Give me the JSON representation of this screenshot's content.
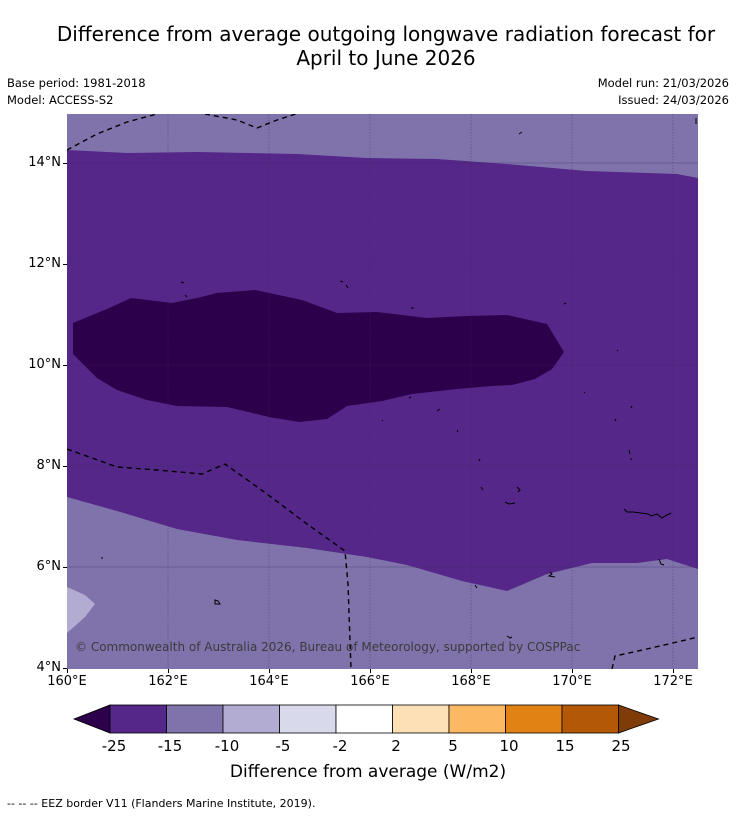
{
  "title": {
    "line1": "Difference from average outgoing longwave radiation forecast for",
    "line2": "April to June 2026"
  },
  "meta": {
    "base_period": "Base period: 1981-2018",
    "model": "Model: ACCESS-S2",
    "model_run": "Model run: 21/03/2026",
    "issued": "Issued: 24/03/2026"
  },
  "map": {
    "copyright": "© Commonwealth of Australia 2026, Bureau of Meteorology, supported by COSPPac",
    "lat_labels": [
      "14°N",
      "12°N",
      "10°N",
      "8°N",
      "6°N",
      "4°N"
    ],
    "lon_labels": [
      "160°E",
      "162°E",
      "164°E",
      "166°E",
      "168°E",
      "170°E",
      "172°E"
    ],
    "lat_range": [
      4,
      15
    ],
    "lon_range": [
      160,
      172.5
    ]
  },
  "colorbar": {
    "labels": [
      "-25",
      "-15",
      "-10",
      "-5",
      "-2",
      "2",
      "5",
      "10",
      "15",
      "25"
    ],
    "colors": [
      "#2d004b",
      "#542788",
      "#8073ac",
      "#b2abd2",
      "#d8daeb",
      "#ffffff",
      "#fee0b6",
      "#fdb863",
      "#e08214",
      "#b35806",
      "#7f3b08"
    ],
    "title": "Difference from average (W/m2)"
  },
  "legend": {
    "eez": "--  --  -- EEZ border V11 (Flanders Marine Institute, 2019)."
  }
}
